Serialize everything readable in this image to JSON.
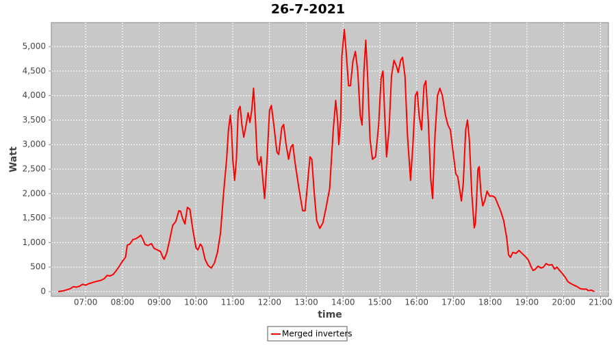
{
  "chart_data": {
    "type": "line",
    "title": "26-7-2021",
    "x_label": "time",
    "y_label": "Watt",
    "x": [
      "06:15",
      "06:25",
      "06:35",
      "06:40",
      "06:45",
      "06:50",
      "06:55",
      "07:00",
      "07:05",
      "07:15",
      "07:25",
      "07:30",
      "07:35",
      "07:40",
      "07:45",
      "07:50",
      "07:55",
      "08:00",
      "08:05",
      "08:08",
      "08:12",
      "08:17",
      "08:22",
      "08:27",
      "08:30",
      "08:33",
      "08:37",
      "08:42",
      "08:47",
      "08:52",
      "08:57",
      "09:02",
      "09:06",
      "09:08",
      "09:12",
      "09:17",
      "09:22",
      "09:27",
      "09:32",
      "09:35",
      "09:38",
      "09:42",
      "09:46",
      "09:50",
      "09:55",
      "10:00",
      "10:03",
      "10:07",
      "10:10",
      "10:15",
      "10:20",
      "10:25",
      "10:30",
      "10:35",
      "10:40",
      "10:45",
      "10:50",
      "10:53",
      "10:56",
      "10:58",
      "11:00",
      "11:03",
      "11:06",
      "11:09",
      "11:12",
      "11:15",
      "11:18",
      "11:21",
      "11:25",
      "11:28",
      "11:31",
      "11:34",
      "11:37",
      "11:40",
      "11:43",
      "11:46",
      "11:49",
      "11:52",
      "11:56",
      "12:00",
      "12:03",
      "12:07",
      "12:12",
      "12:15",
      "12:20",
      "12:23",
      "12:27",
      "12:31",
      "12:35",
      "12:38",
      "12:42",
      "12:48",
      "12:54",
      "12:58",
      "13:02",
      "13:06",
      "13:09",
      "13:13",
      "13:17",
      "13:22",
      "13:27",
      "13:32",
      "13:38",
      "13:44",
      "13:48",
      "13:51",
      "13:53",
      "13:56",
      "13:58",
      "14:02",
      "14:05",
      "14:09",
      "14:12",
      "14:16",
      "14:20",
      "14:24",
      "14:28",
      "14:31",
      "14:34",
      "14:37",
      "14:40",
      "14:44",
      "14:48",
      "14:53",
      "14:58",
      "15:02",
      "15:05",
      "15:08",
      "15:11",
      "15:15",
      "15:19",
      "15:23",
      "15:27",
      "15:30",
      "15:34",
      "15:37",
      "15:41",
      "15:45",
      "15:50",
      "15:54",
      "15:58",
      "16:01",
      "16:04",
      "16:08",
      "16:12",
      "16:15",
      "16:19",
      "16:23",
      "16:26",
      "16:30",
      "16:34",
      "16:38",
      "16:42",
      "16:47",
      "16:51",
      "16:55",
      "17:00",
      "17:04",
      "17:07",
      "17:10",
      "17:13",
      "17:16",
      "17:20",
      "17:23",
      "17:26",
      "17:30",
      "17:34",
      "17:36",
      "17:40",
      "17:42",
      "17:45",
      "17:48",
      "17:51",
      "17:55",
      "17:59",
      "18:04",
      "18:08",
      "18:12",
      "18:17",
      "18:22",
      "18:27",
      "18:30",
      "18:33",
      "18:37",
      "18:42",
      "18:47",
      "18:52",
      "18:57",
      "19:02",
      "19:07",
      "19:10",
      "19:14",
      "19:18",
      "19:23",
      "19:27",
      "19:31",
      "19:36",
      "19:41",
      "19:45",
      "19:49",
      "19:52",
      "19:57",
      "20:02",
      "20:07",
      "20:12",
      "20:17",
      "20:22",
      "20:27",
      "20:32",
      "20:37",
      "20:40",
      "20:45",
      "20:50"
    ],
    "series": [
      {
        "name": "Merged inverters",
        "color": "#ff0000",
        "values": [
          0,
          20,
          60,
          100,
          90,
          110,
          150,
          130,
          160,
          200,
          230,
          260,
          330,
          320,
          350,
          430,
          520,
          620,
          700,
          950,
          970,
          1060,
          1080,
          1120,
          1150,
          1080,
          960,
          940,
          980,
          880,
          850,
          820,
          700,
          660,
          780,
          1050,
          1350,
          1430,
          1650,
          1640,
          1500,
          1380,
          1720,
          1680,
          1250,
          900,
          850,
          970,
          920,
          650,
          530,
          480,
          580,
          800,
          1200,
          2000,
          2700,
          3300,
          3600,
          3300,
          2700,
          2270,
          2700,
          3700,
          3780,
          3400,
          3150,
          3350,
          3650,
          3450,
          3700,
          4150,
          3500,
          2700,
          2580,
          2750,
          2300,
          1900,
          2700,
          3700,
          3800,
          3400,
          2850,
          2800,
          3350,
          3410,
          3000,
          2700,
          2950,
          3000,
          2600,
          2100,
          1650,
          1650,
          2200,
          2750,
          2700,
          2000,
          1450,
          1290,
          1400,
          1700,
          2100,
          3300,
          3900,
          3500,
          3000,
          3500,
          4800,
          5350,
          4900,
          4200,
          4200,
          4700,
          4900,
          4500,
          3600,
          3400,
          4500,
          5130,
          4400,
          3100,
          2700,
          2750,
          3400,
          4350,
          4500,
          3600,
          2750,
          3300,
          4400,
          4720,
          4600,
          4470,
          4720,
          4780,
          4400,
          3200,
          2270,
          3000,
          4000,
          4080,
          3600,
          3300,
          4200,
          4300,
          3500,
          2300,
          1900,
          3200,
          4000,
          4150,
          4000,
          3600,
          3400,
          3300,
          2800,
          2400,
          2350,
          2100,
          1850,
          2200,
          3300,
          3500,
          3100,
          2000,
          1300,
          1400,
          2500,
          2550,
          2000,
          1750,
          1850,
          2050,
          1950,
          1950,
          1920,
          1800,
          1650,
          1450,
          1100,
          750,
          700,
          800,
          780,
          840,
          780,
          720,
          650,
          500,
          430,
          460,
          520,
          480,
          500,
          570,
          540,
          550,
          460,
          500,
          450,
          380,
          300,
          200,
          160,
          130,
          100,
          60,
          50,
          50,
          20,
          30,
          0
        ]
      }
    ],
    "xlim": [
      "06:04",
      "21:13"
    ],
    "xticks": [
      "07:00",
      "08:00",
      "09:00",
      "10:00",
      "11:00",
      "12:00",
      "13:00",
      "14:00",
      "15:00",
      "16:00",
      "17:00",
      "18:00",
      "19:00",
      "20:00",
      "21:00"
    ],
    "ylim": [
      -98,
      5490
    ],
    "yticks": [
      0,
      500,
      {
        "value": 1000,
        "label": "1,000"
      },
      {
        "value": 1500,
        "label": "1,500"
      },
      {
        "value": 2000,
        "label": "2,000"
      },
      {
        "value": 2500,
        "label": "2,500"
      },
      {
        "value": 3000,
        "label": "3,000"
      },
      {
        "value": 3500,
        "label": "3,500"
      },
      {
        "value": 4000,
        "label": "4,000"
      },
      {
        "value": 4500,
        "label": "4,500"
      },
      {
        "value": 5000,
        "label": "5,000"
      }
    ],
    "grid": true,
    "legend": "bottom"
  }
}
